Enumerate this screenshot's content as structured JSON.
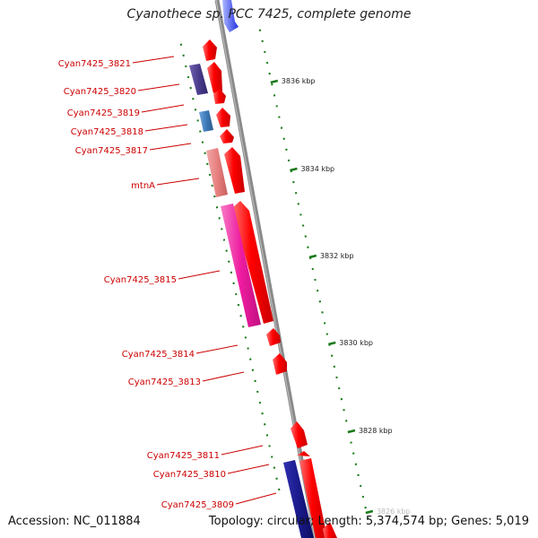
{
  "title": "Cyanothece sp. PCC 7425, complete genome",
  "footer": {
    "accession": "Accession: NC_011884",
    "summary": "Topology: circular; Length: 5,374,574 bp; Genes: 5,019"
  },
  "ruler_labels": [
    "3836 kbp",
    "3834 kbp",
    "3832 kbp",
    "3830 kbp",
    "3828 kbp",
    "3826 kbp"
  ],
  "gene_labels": [
    "Cyan7425_3821",
    "Cyan7425_3820",
    "Cyan7425_3819",
    "Cyan7425_3818",
    "Cyan7425_3817",
    "mtnA",
    "Cyan7425_3815",
    "Cyan7425_3814",
    "Cyan7425_3813",
    "Cyan7425_3811",
    "Cyan7425_3810",
    "Cyan7425_3809"
  ],
  "colors": {
    "label": "#cc0000",
    "gene_red": "#ff0000",
    "backbone": "#8a8a8a",
    "tick": "#1a7a1a",
    "ruler_text": "#222222",
    "magenta": "#ee1ca0",
    "salmon": "#e88080",
    "navy": "#1a1a8c",
    "purple": "#4b3c8c",
    "steelblue": "#3d7ab8"
  }
}
